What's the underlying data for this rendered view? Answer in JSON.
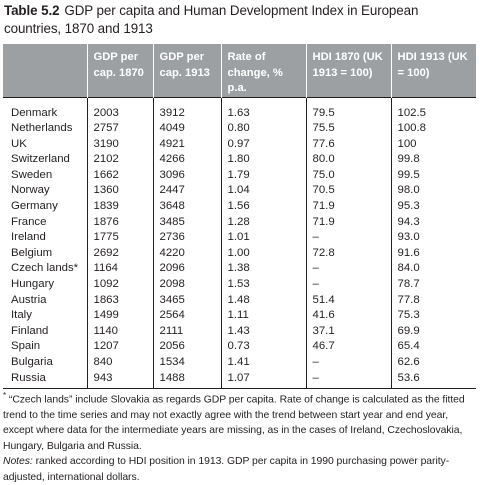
{
  "caption": {
    "table_number": "Table 5.2",
    "title": "GDP per capita and Human Development Index in European countries, 1870 and 1913"
  },
  "table": {
    "headers": [
      "",
      "GDP per cap. 1870",
      "GDP per cap. 1913",
      "Rate of change, % p.a.",
      "HDI 1870 (UK 1913 = 100)",
      "HDI 1913 (UK = 100)"
    ],
    "rows": [
      [
        "Denmark",
        "2003",
        "3912",
        "1.63",
        "79.5",
        "102.5"
      ],
      [
        "Netherlands",
        "2757",
        "4049",
        "0.80",
        "75.5",
        "100.8"
      ],
      [
        "UK",
        "3190",
        "4921",
        "0.97",
        "77.6",
        "100"
      ],
      [
        "Switzerland",
        "2102",
        "4266",
        "1.80",
        "80.0",
        "99.8"
      ],
      [
        "Sweden",
        "1662",
        "3096",
        "1.79",
        "75.0",
        "99.5"
      ],
      [
        "Norway",
        "1360",
        "2447",
        "1.04",
        "70.5",
        "98.0"
      ],
      [
        "Germany",
        "1839",
        "3648",
        "1.56",
        "71.9",
        "95.3"
      ],
      [
        "France",
        "1876",
        "3485",
        "1.28",
        "71.9",
        "94.3"
      ],
      [
        "Ireland",
        "1775",
        "2736",
        "1.01",
        "–",
        "93.0"
      ],
      [
        "Belgium",
        "2692",
        "4220",
        "1.00",
        "72.8",
        "91.6"
      ],
      [
        "Czech lands*",
        "1164",
        "2096",
        "1.38",
        "–",
        "84.0"
      ],
      [
        "Hungary",
        "1092",
        "2098",
        "1.53",
        "–",
        "78.7"
      ],
      [
        "Austria",
        "1863",
        "3465",
        "1.48",
        "51.4",
        "77.8"
      ],
      [
        "Italy",
        "1499",
        "2564",
        "1.11",
        "41.6",
        "75.3"
      ],
      [
        "Finland",
        "1140",
        "2111",
        "1.43",
        "37.1",
        "69.9"
      ],
      [
        "Spain",
        "1207",
        "2056",
        "0.73",
        "46.7",
        "65.4"
      ],
      [
        "Bulgaria",
        "840",
        "1534",
        "1.41",
        "–",
        "62.6"
      ],
      [
        "Russia",
        "943",
        "1488",
        "1.07",
        "–",
        "53.6"
      ]
    ]
  },
  "footnote": {
    "marker": "*",
    "text": " “Czech lands” include Slovakia as regards GDP per capita. Rate of change is calculated as the fitted trend to the time series and may not exactly agree with the trend between start year and end year, except where data for the intermediate years are missing, as in the cases of Ireland, Czechoslovakia, Hungary, Bulgaria and Russia."
  },
  "notes": {
    "label": "Notes:",
    "text": " ranked according to HDI position in 1913. GDP per capita in 1990 purchasing power parity-adjusted, international dollars."
  }
}
